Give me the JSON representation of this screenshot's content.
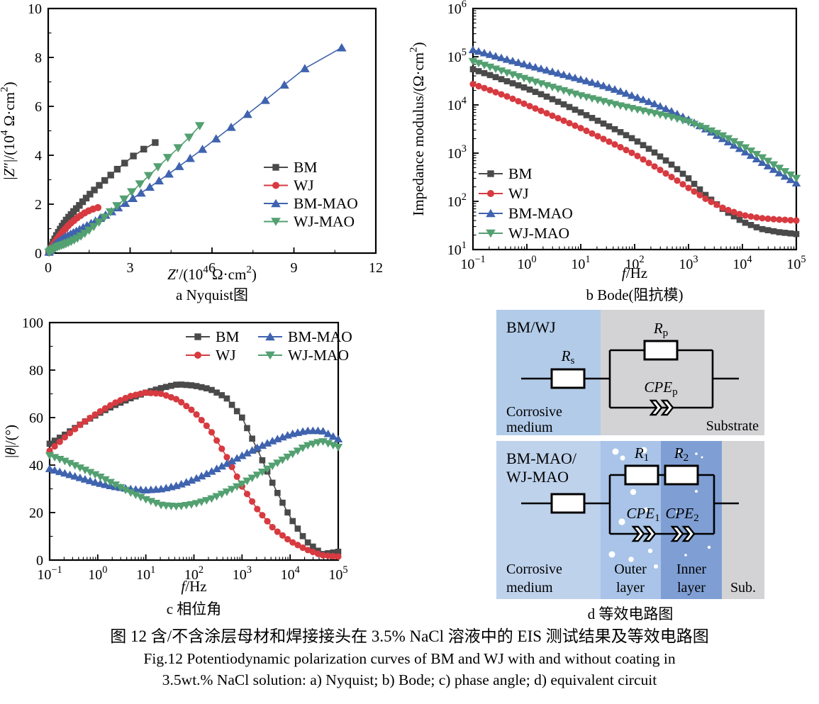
{
  "figure": {
    "caption_cn": "图 12  含/不含涂层母材和焊接接头在 3.5% NaCl 溶液中的 EIS 测试结果及等效电路图",
    "caption_en_line1": "Fig.12 Potentiodynamic polarization curves of BM and WJ with and without coating in",
    "caption_en_line2": "3.5wt.% NaCl solution: a) Nyquist; b) Bode; c) phase angle; d) equivalent circuit"
  },
  "colors": {
    "bm": "#4a4a4a",
    "wj": "#d73a40",
    "bm_mao": "#3f63ae",
    "wj_mao": "#53a071",
    "axis": "#000000"
  },
  "chart_data": [
    {
      "id": "nyquist",
      "type": "scatter",
      "caption": "a  Nyquist图",
      "xlabel": "*Z*′/(10^{4} Ω·cm^{2})",
      "ylabel": "|*Z*″|/(10^{4} Ω·cm^{2})",
      "xlim": [
        0,
        12
      ],
      "ylim": [
        0,
        10
      ],
      "xticks": [
        0,
        3,
        6,
        9,
        12
      ],
      "yticks": [
        0,
        2,
        4,
        6,
        8,
        10
      ],
      "xminor": [
        1.5,
        4.5,
        7.5,
        10.5
      ],
      "yminor": [
        1,
        3,
        5,
        7,
        9
      ],
      "grid": false,
      "legend_position": "right-middle",
      "series": [
        {
          "name": "BM",
          "marker": "square",
          "color_key": "bm",
          "points": [
            [
              0.02,
              0.03
            ],
            [
              0.05,
              0.1
            ],
            [
              0.09,
              0.2
            ],
            [
              0.13,
              0.32
            ],
            [
              0.18,
              0.45
            ],
            [
              0.24,
              0.58
            ],
            [
              0.3,
              0.72
            ],
            [
              0.37,
              0.85
            ],
            [
              0.44,
              0.98
            ],
            [
              0.51,
              1.1
            ],
            [
              0.58,
              1.22
            ],
            [
              0.66,
              1.35
            ],
            [
              0.75,
              1.47
            ],
            [
              0.84,
              1.58
            ],
            [
              0.93,
              1.7
            ],
            [
              1.03,
              1.82
            ],
            [
              1.14,
              1.95
            ],
            [
              1.26,
              2.1
            ],
            [
              1.39,
              2.25
            ],
            [
              1.53,
              2.41
            ],
            [
              1.69,
              2.58
            ],
            [
              1.87,
              2.77
            ],
            [
              2.07,
              2.97
            ],
            [
              2.29,
              3.19
            ],
            [
              2.53,
              3.43
            ],
            [
              2.8,
              3.68
            ],
            [
              3.12,
              3.97
            ],
            [
              3.5,
              4.25
            ],
            [
              3.92,
              4.52
            ]
          ]
        },
        {
          "name": "WJ",
          "marker": "circle",
          "color_key": "wj",
          "points": [
            [
              0.02,
              0.02
            ],
            [
              0.05,
              0.08
            ],
            [
              0.09,
              0.16
            ],
            [
              0.14,
              0.26
            ],
            [
              0.19,
              0.36
            ],
            [
              0.25,
              0.46
            ],
            [
              0.32,
              0.57
            ],
            [
              0.39,
              0.68
            ],
            [
              0.47,
              0.79
            ],
            [
              0.55,
              0.9
            ],
            [
              0.64,
              1.01
            ],
            [
              0.73,
              1.12
            ],
            [
              0.83,
              1.23
            ],
            [
              0.94,
              1.33
            ],
            [
              1.06,
              1.44
            ],
            [
              1.19,
              1.54
            ],
            [
              1.33,
              1.64
            ],
            [
              1.48,
              1.73
            ],
            [
              1.64,
              1.8
            ],
            [
              1.82,
              1.86
            ]
          ]
        },
        {
          "name": "BM-MAO",
          "marker": "triangle-up",
          "color_key": "bm_mao",
          "points": [
            [
              0.03,
              0.05
            ],
            [
              0.07,
              0.12
            ],
            [
              0.12,
              0.2
            ],
            [
              0.18,
              0.28
            ],
            [
              0.24,
              0.35
            ],
            [
              0.31,
              0.42
            ],
            [
              0.38,
              0.48
            ],
            [
              0.46,
              0.54
            ],
            [
              0.54,
              0.6
            ],
            [
              0.63,
              0.66
            ],
            [
              0.72,
              0.72
            ],
            [
              0.82,
              0.78
            ],
            [
              0.92,
              0.84
            ],
            [
              1.03,
              0.9
            ],
            [
              1.15,
              0.97
            ],
            [
              1.28,
              1.05
            ],
            [
              1.42,
              1.13
            ],
            [
              1.57,
              1.22
            ],
            [
              1.73,
              1.32
            ],
            [
              1.9,
              1.43
            ],
            [
              2.1,
              1.56
            ],
            [
              2.32,
              1.7
            ],
            [
              2.56,
              1.86
            ],
            [
              2.82,
              2.04
            ],
            [
              3.1,
              2.24
            ],
            [
              3.4,
              2.46
            ],
            [
              3.72,
              2.7
            ],
            [
              4.06,
              2.96
            ],
            [
              4.42,
              3.24
            ],
            [
              4.8,
              3.55
            ],
            [
              5.2,
              3.88
            ],
            [
              5.65,
              4.25
            ],
            [
              6.15,
              4.68
            ],
            [
              6.7,
              5.15
            ],
            [
              7.3,
              5.68
            ],
            [
              7.95,
              6.25
            ],
            [
              8.65,
              6.88
            ],
            [
              9.4,
              7.55
            ],
            [
              10.75,
              8.4
            ]
          ]
        },
        {
          "name": "WJ-MAO",
          "marker": "triangle-down",
          "color_key": "wj_mao",
          "points": [
            [
              0.03,
              0.03
            ],
            [
              0.08,
              0.08
            ],
            [
              0.14,
              0.13
            ],
            [
              0.2,
              0.17
            ],
            [
              0.27,
              0.21
            ],
            [
              0.34,
              0.25
            ],
            [
              0.41,
              0.28
            ],
            [
              0.49,
              0.31
            ],
            [
              0.57,
              0.34
            ],
            [
              0.65,
              0.38
            ],
            [
              0.74,
              0.42
            ],
            [
              0.84,
              0.47
            ],
            [
              0.95,
              0.53
            ],
            [
              1.07,
              0.6
            ],
            [
              1.2,
              0.69
            ],
            [
              1.34,
              0.8
            ],
            [
              1.5,
              0.93
            ],
            [
              1.67,
              1.08
            ],
            [
              1.86,
              1.26
            ],
            [
              2.06,
              1.46
            ],
            [
              2.28,
              1.68
            ],
            [
              2.52,
              1.93
            ],
            [
              2.78,
              2.2
            ],
            [
              3.06,
              2.5
            ],
            [
              3.36,
              2.82
            ],
            [
              3.68,
              3.16
            ],
            [
              4.02,
              3.52
            ],
            [
              4.38,
              3.9
            ],
            [
              4.76,
              4.3
            ],
            [
              5.16,
              4.73
            ],
            [
              5.55,
              5.2
            ]
          ]
        }
      ]
    },
    {
      "id": "bode",
      "type": "line",
      "caption": "b  Bode(阻抗模)",
      "xlabel": "*f*/Hz",
      "ylabel": "Impedance modulus/(Ω·cm^{2})",
      "xscale": "log",
      "yscale": "log",
      "xlim_exp": [
        -1,
        5
      ],
      "ylim_exp": [
        1,
        6
      ],
      "grid": false,
      "legend_position": "left-lower",
      "x": [
        0.1,
        0.215,
        0.464,
        1,
        2.15,
        4.64,
        10,
        21.5,
        46.4,
        100,
        215,
        464,
        1000,
        2150,
        4640,
        10000,
        21500,
        46400,
        100000
      ],
      "series": [
        {
          "name": "BM",
          "marker": "square",
          "color_key": "bm",
          "values": [
            55000,
            41000,
            30000,
            22000,
            15500,
            10500,
            7000,
            4600,
            3000,
            1900,
            1100,
            600,
            300,
            130,
            65,
            38,
            27,
            23,
            21
          ]
        },
        {
          "name": "WJ",
          "marker": "circle",
          "color_key": "wj",
          "values": [
            27000,
            20000,
            14500,
            10000,
            7000,
            4800,
            3300,
            2200,
            1450,
            950,
            560,
            330,
            190,
            110,
            70,
            52,
            45,
            42,
            40
          ]
        },
        {
          "name": "BM-MAO",
          "marker": "triangle-up",
          "color_key": "bm_mao",
          "values": [
            140000,
            110000,
            86000,
            68000,
            54000,
            43000,
            34000,
            27000,
            20500,
            15000,
            11000,
            7600,
            5000,
            3100,
            1900,
            1150,
            680,
            400,
            240
          ]
        },
        {
          "name": "WJ-MAO",
          "marker": "triangle-down",
          "color_key": "wj_mao",
          "values": [
            80000,
            60000,
            45000,
            34000,
            26000,
            20000,
            15500,
            12500,
            10000,
            8200,
            6800,
            5600,
            4400,
            3200,
            2200,
            1400,
            850,
            500,
            300
          ]
        }
      ]
    },
    {
      "id": "phase",
      "type": "line",
      "caption": "c  相位角",
      "xlabel": "*f*/Hz",
      "ylabel": "|*θ*|/(°)",
      "xscale": "log",
      "xlim_exp": [
        -1,
        5
      ],
      "ylim": [
        0,
        100
      ],
      "yticks": [
        0,
        20,
        40,
        60,
        80,
        100
      ],
      "yminor": [
        10,
        30,
        50,
        70,
        90
      ],
      "grid": false,
      "legend_position": "top-center-2col",
      "x": [
        0.1,
        0.215,
        0.464,
        1,
        2.15,
        4.64,
        10,
        21.5,
        46.4,
        100,
        215,
        464,
        1000,
        2150,
        4640,
        10000,
        21500,
        46400,
        100000
      ],
      "series": [
        {
          "name": "BM",
          "marker": "square",
          "color_key": "bm",
          "values": [
            49,
            53,
            57.5,
            61.5,
            65,
            68,
            70.5,
            72.5,
            74,
            73.5,
            72,
            68.5,
            60,
            46,
            31,
            18,
            8,
            2.5,
            3.5
          ]
        },
        {
          "name": "WJ",
          "marker": "circle",
          "color_key": "wj",
          "values": [
            46,
            52,
            57.5,
            62,
            66,
            69,
            70.5,
            70,
            67.5,
            62.5,
            55,
            44,
            31,
            21,
            13,
            8,
            4.5,
            2,
            1.5
          ]
        },
        {
          "name": "BM-MAO",
          "marker": "triangle-up",
          "color_key": "bm_mao",
          "values": [
            38.5,
            36.5,
            34.5,
            32.5,
            31,
            30,
            29.5,
            30,
            31.5,
            34,
            37,
            40.5,
            44,
            47.5,
            50.5,
            53,
            54.5,
            54.5,
            51
          ]
        },
        {
          "name": "WJ-MAO",
          "marker": "triangle-down",
          "color_key": "wj_mao",
          "values": [
            44,
            41.5,
            38.5,
            35.5,
            32,
            28.5,
            25.5,
            23,
            22.5,
            23.5,
            25.5,
            28.5,
            32,
            36,
            40,
            44,
            48,
            50,
            47.5
          ]
        }
      ]
    }
  ],
  "circuit": {
    "caption": "d  等效电路图",
    "panels": [
      {
        "id": "bm-wj",
        "corner_label_lines": [
          "BM/WJ"
        ],
        "regions": [
          {
            "label_lines": [
              "Corrosive",
              "medium"
            ],
            "color": "#b2cbe9"
          },
          {
            "label_lines": [
              "Substrate"
            ],
            "color": "#d3d3d5"
          }
        ],
        "resistor_labels": [
          "*R*_{s}",
          "*R*_{p}"
        ],
        "cpe_labels": [
          "*CPE*_{p}"
        ]
      },
      {
        "id": "mao",
        "corner_label_lines": [
          "BM-MAO/",
          "WJ-MAO"
        ],
        "regions": [
          {
            "label_lines": [
              "Corrosive",
              "medium"
            ],
            "color": "#bfd2ec"
          },
          {
            "label_lines": [
              "Outer",
              "layer"
            ],
            "color": "#a9c4e8"
          },
          {
            "label_lines": [
              "Inner",
              "layer"
            ],
            "color": "#7f9fd4"
          },
          {
            "label_lines": [
              "Sub."
            ],
            "color": "#d3d3d5"
          }
        ],
        "resistor_labels": [
          "",
          "*R*_{1}",
          "*R*_{2}"
        ],
        "cpe_labels": [
          "*CPE*_{1}",
          "*CPE*_{2}"
        ]
      }
    ]
  }
}
